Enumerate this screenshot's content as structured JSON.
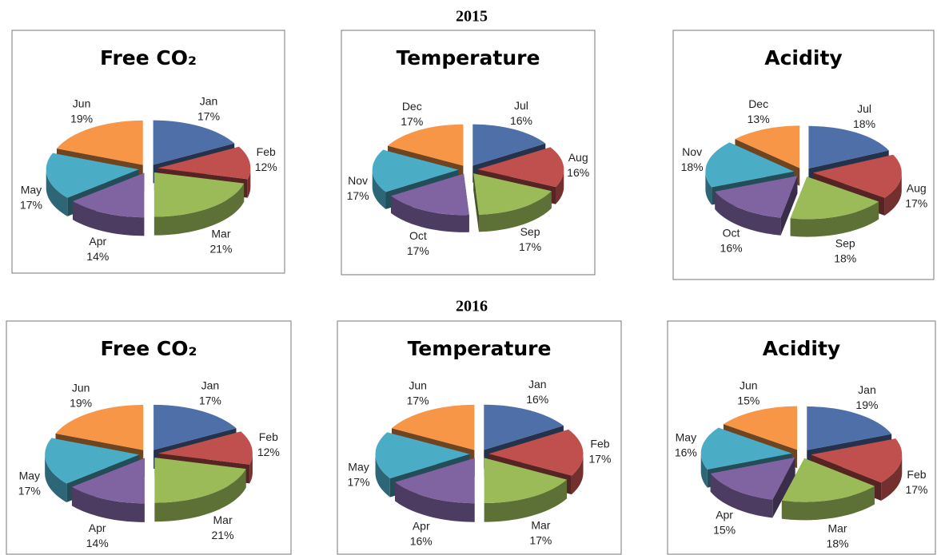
{
  "sections": [
    "2015",
    "2016"
  ],
  "chart_data": [
    {
      "type": "pie3d",
      "title": "Free CO₂",
      "categories": [
        "Jan",
        "Feb",
        "Mar",
        "Apr",
        "May",
        "Jun"
      ],
      "values": [
        17,
        12,
        21,
        14,
        17,
        19
      ],
      "value_labels": [
        "17%",
        "12%",
        "21%",
        "14%",
        "17%",
        "19%"
      ],
      "colors": [
        "#4f6fa8",
        "#c0504d",
        "#9bbb59",
        "#8064a2",
        "#4bacc6",
        "#f79646"
      ]
    },
    {
      "type": "pie3d",
      "title": "Temperature",
      "categories": [
        "Jul",
        "Aug",
        "Sep",
        "Oct",
        "Nov",
        "Dec"
      ],
      "values": [
        16,
        16,
        17,
        17,
        17,
        17
      ],
      "value_labels": [
        "16%",
        "16%",
        "17%",
        "17%",
        "17%",
        "17%"
      ],
      "colors": [
        "#4f6fa8",
        "#c0504d",
        "#9bbb59",
        "#8064a2",
        "#4bacc6",
        "#f79646"
      ]
    },
    {
      "type": "pie3d",
      "title": "Acidity",
      "categories": [
        "Jul",
        "Aug",
        "Sep",
        "Oct",
        "Nov",
        "Dec"
      ],
      "values": [
        18,
        17,
        18,
        16,
        18,
        13
      ],
      "value_labels": [
        "18%",
        "17%",
        "18%",
        "16%",
        "18%",
        "13%"
      ],
      "colors": [
        "#4f6fa8",
        "#c0504d",
        "#9bbb59",
        "#8064a2",
        "#4bacc6",
        "#f79646"
      ]
    },
    {
      "type": "pie3d",
      "title": "Free CO₂",
      "categories": [
        "Jan",
        "Feb",
        "Mar",
        "Apr",
        "May",
        "Jun"
      ],
      "values": [
        17,
        12,
        21,
        14,
        17,
        19
      ],
      "value_labels": [
        "17%",
        "12%",
        "21%",
        "14%",
        "17%",
        "19%"
      ],
      "colors": [
        "#4f6fa8",
        "#c0504d",
        "#9bbb59",
        "#8064a2",
        "#4bacc6",
        "#f79646"
      ]
    },
    {
      "type": "pie3d",
      "title": "Temperature",
      "categories": [
        "Jan",
        "Feb",
        "Mar",
        "Apr",
        "May",
        "Jun"
      ],
      "values": [
        16,
        17,
        17,
        16,
        17,
        17
      ],
      "value_labels": [
        "16%",
        "17%",
        "17%",
        "16%",
        "17%",
        "17%"
      ],
      "colors": [
        "#4f6fa8",
        "#c0504d",
        "#9bbb59",
        "#8064a2",
        "#4bacc6",
        "#f79646"
      ]
    },
    {
      "type": "pie3d",
      "title": "Acidity",
      "categories": [
        "Jan",
        "Feb",
        "Mar",
        "Apr",
        "May",
        "Jun"
      ],
      "values": [
        19,
        17,
        18,
        15,
        16,
        15
      ],
      "value_labels": [
        "19%",
        "17%",
        "18%",
        "15%",
        "16%",
        "15%"
      ],
      "colors": [
        "#4f6fa8",
        "#c0504d",
        "#9bbb59",
        "#8064a2",
        "#4bacc6",
        "#f79646"
      ]
    }
  ]
}
